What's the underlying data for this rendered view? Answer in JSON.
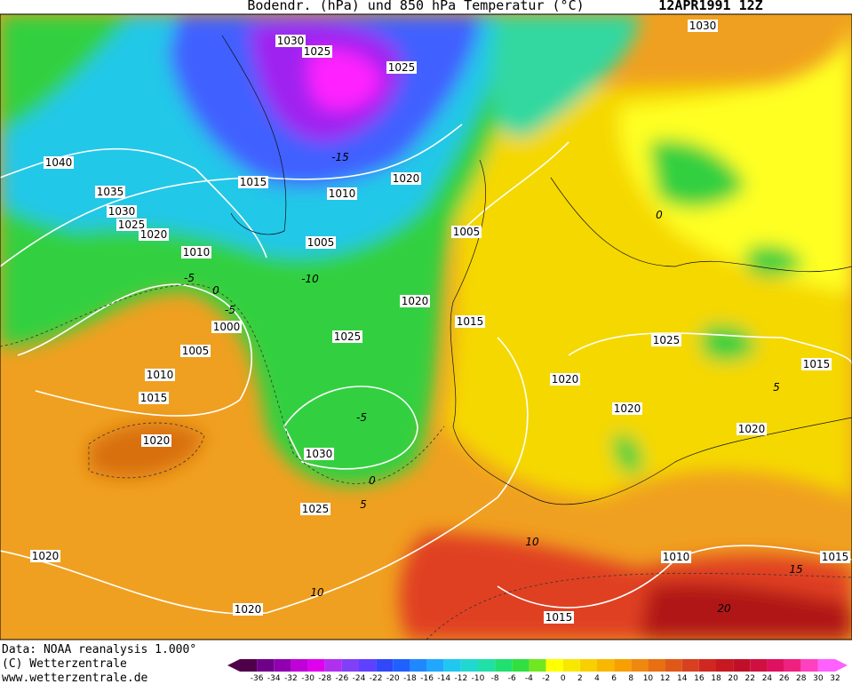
{
  "header": {
    "title": "Bodendr. (hPa) und 850 hPa Temperatur (°C)",
    "date": "12APR1991 12Z"
  },
  "isobar_labels": [
    1030,
    1025,
    1025,
    1030,
    1040,
    1035,
    1030,
    1025,
    1020,
    1015,
    1010,
    1020,
    1010,
    1005,
    1005,
    1020,
    1015,
    1000,
    1025,
    1005,
    1010,
    1015,
    1020,
    1030,
    1025,
    1025,
    1015,
    1020,
    1020,
    1020,
    1010,
    1015,
    1020,
    1020,
    1015
  ],
  "temperature_labels": [
    -15,
    -10,
    -5,
    0,
    -5,
    0,
    -5,
    0,
    5,
    10,
    10,
    15,
    20,
    5
  ],
  "footer": {
    "source": "Data: NOAA reanalysis 1.000°",
    "copyright": "(C) Wetterzentrale",
    "url": "www.wetterzentrale.de"
  },
  "colorbar_ticks": [
    -36,
    -34,
    -32,
    -30,
    -28,
    -26,
    -24,
    -22,
    -20,
    -18,
    -16,
    -14,
    -12,
    -10,
    -8,
    -6,
    -4,
    -2,
    0,
    2,
    4,
    6,
    8,
    10,
    12,
    14,
    16,
    18,
    20,
    22,
    24,
    26,
    28,
    30,
    32
  ]
}
